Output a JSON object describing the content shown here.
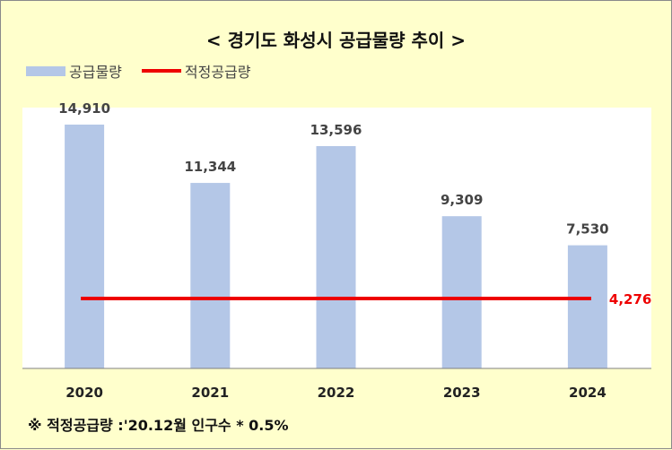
{
  "chart_data": {
    "type": "bar",
    "title": "< 경기도 화성시 공급물량 추이 >",
    "categories": [
      "2020",
      "2021",
      "2022",
      "2023",
      "2024"
    ],
    "series": [
      {
        "name": "공급물량",
        "values": [
          14910,
          11344,
          13596,
          9309,
          7530
        ],
        "labels": [
          "14,910",
          "11,344",
          "13,596",
          "9,309",
          "7,530"
        ]
      }
    ],
    "reference_line": {
      "name": "적정공급량",
      "value": 4276,
      "label": "4,276"
    },
    "ylim": [
      0,
      16000
    ],
    "grid": false,
    "legend_position": "top-left",
    "colors": {
      "bar": "#b4c7e7",
      "line": "#ee0000",
      "background": "#ffffcc",
      "plot_area": "#ffffff"
    }
  },
  "footnote": "※ 적정공급량 :'20.12월 인구수 * 0.5%"
}
